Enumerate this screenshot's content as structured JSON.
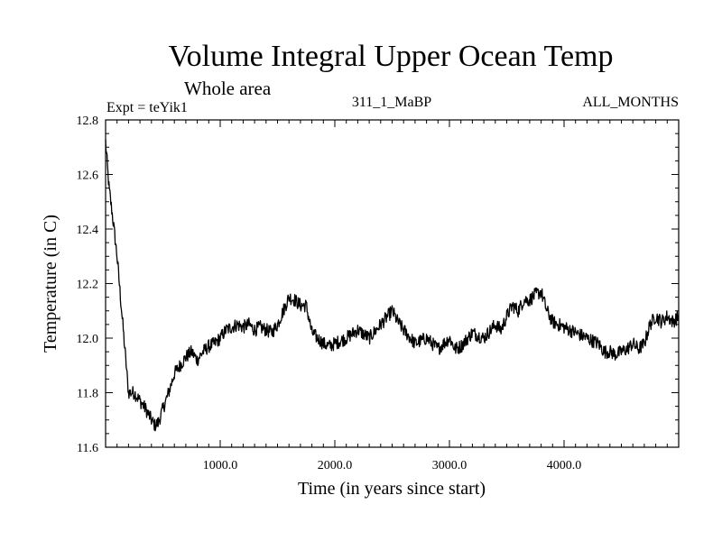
{
  "chart_data": {
    "type": "line",
    "title": "Volume Integral Upper Ocean Temp",
    "subtitle": "Whole area",
    "expt_label": "Expt = teYik1",
    "run_label": "311_1_MaBP",
    "period_label": "ALL_MONTHS",
    "xlabel": "Time (in years since start)",
    "ylabel": "Temperature (in C)",
    "xlim": [
      0,
      5000
    ],
    "ylim": [
      11.6,
      12.8
    ],
    "x_ticks": [
      1000,
      2000,
      3000,
      4000
    ],
    "x_tick_labels": [
      "1000.0",
      "2000.0",
      "3000.0",
      "4000.0"
    ],
    "y_ticks": [
      11.6,
      11.8,
      12.0,
      12.2,
      12.4,
      12.6,
      12.8
    ],
    "y_tick_labels": [
      "11.6",
      "11.8",
      "12.0",
      "12.2",
      "12.4",
      "12.6",
      "12.8"
    ],
    "grid": false,
    "line_color": "#000000",
    "series": [
      {
        "name": "Volume integral upper ocean temperature",
        "x": [
          0,
          30,
          60,
          100,
          140,
          180,
          200,
          250,
          300,
          350,
          400,
          430,
          460,
          500,
          550,
          600,
          650,
          700,
          750,
          800,
          850,
          900,
          950,
          1000,
          1050,
          1100,
          1150,
          1200,
          1250,
          1300,
          1350,
          1400,
          1450,
          1500,
          1550,
          1600,
          1650,
          1700,
          1750,
          1800,
          1850,
          1900,
          1950,
          2000,
          2100,
          2200,
          2300,
          2400,
          2500,
          2550,
          2600,
          2700,
          2800,
          2900,
          3000,
          3050,
          3100,
          3200,
          3300,
          3400,
          3450,
          3500,
          3550,
          3600,
          3650,
          3700,
          3750,
          3800,
          3850,
          3900,
          3950,
          4000,
          4100,
          4200,
          4300,
          4350,
          4400,
          4450,
          4500,
          4550,
          4600,
          4650,
          4700,
          4750,
          4800,
          4850,
          4900,
          4950,
          5000
        ],
        "y": [
          12.72,
          12.55,
          12.45,
          12.3,
          12.1,
          11.9,
          11.8,
          11.8,
          11.77,
          11.74,
          11.7,
          11.68,
          11.69,
          11.74,
          11.8,
          11.87,
          11.9,
          11.93,
          11.95,
          11.92,
          11.95,
          11.97,
          11.98,
          12.0,
          12.03,
          12.04,
          12.05,
          12.04,
          12.05,
          12.03,
          12.04,
          12.03,
          12.02,
          12.05,
          12.1,
          12.15,
          12.14,
          12.12,
          12.12,
          12.02,
          12.0,
          11.98,
          11.97,
          11.98,
          12.0,
          12.03,
          12.0,
          12.05,
          12.1,
          12.06,
          12.03,
          11.98,
          12.0,
          11.96,
          12.0,
          11.96,
          11.97,
          12.02,
          12.0,
          12.05,
          12.03,
          12.08,
          12.12,
          12.1,
          12.14,
          12.14,
          12.16,
          12.17,
          12.1,
          12.06,
          12.05,
          12.04,
          12.02,
          12.0,
          11.98,
          11.95,
          11.95,
          11.94,
          11.95,
          11.96,
          11.98,
          11.96,
          11.98,
          12.05,
          12.08,
          12.06,
          12.08,
          12.06,
          12.08
        ]
      }
    ]
  }
}
